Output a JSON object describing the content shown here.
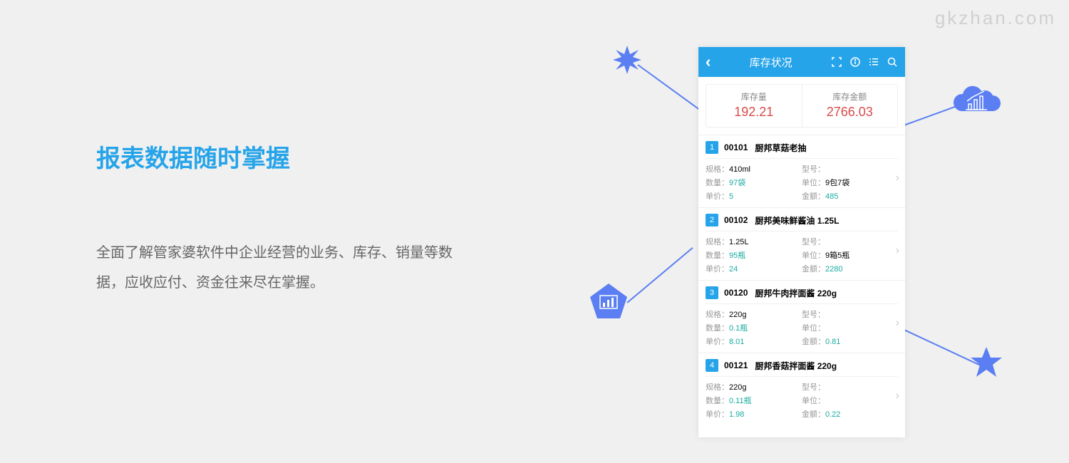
{
  "watermark": "gkzhan.com",
  "left": {
    "title": "报表数据随时掌握",
    "desc": "全面了解管家婆软件中企业经营的业务、库存、销量等数据，应收应付、资金往来尽在掌握。"
  },
  "phone": {
    "title": "库存状况",
    "summary": [
      {
        "label": "库存量",
        "value": "192.21"
      },
      {
        "label": "库存金额",
        "value": "2766.03"
      }
    ],
    "items": [
      {
        "num": "1",
        "code": "00101",
        "name": "厨邦草菇老抽",
        "spec": "410ml",
        "model": "",
        "qty": "97袋",
        "unit": "9包7袋",
        "price": "5",
        "amount": "485"
      },
      {
        "num": "2",
        "code": "00102",
        "name": "厨邦美味鲜酱油 1.25L",
        "spec": "1.25L",
        "model": "",
        "qty": "95瓶",
        "unit": "9箱5瓶",
        "price": "24",
        "amount": "2280"
      },
      {
        "num": "3",
        "code": "00120",
        "name": "厨邦牛肉拌面酱 220g",
        "spec": "220g",
        "model": "",
        "qty": "0.1瓶",
        "unit": "",
        "price": "8.01",
        "amount": "0.81"
      },
      {
        "num": "4",
        "code": "00121",
        "name": "厨邦香菇拌面酱 220g",
        "spec": "220g",
        "model": "",
        "qty": "0.11瓶",
        "unit": "",
        "price": "1.98",
        "amount": "0.22"
      }
    ],
    "labels": {
      "spec": "规格：",
      "model": "型号：",
      "qty": "数量：",
      "unit": "单位：",
      "price": "单价：",
      "amount": "金额："
    }
  },
  "colors": {
    "accent": "#26a4e9",
    "shape": "#5b7ff2",
    "value": "#d94b4b",
    "teal": "#1aaba0"
  }
}
